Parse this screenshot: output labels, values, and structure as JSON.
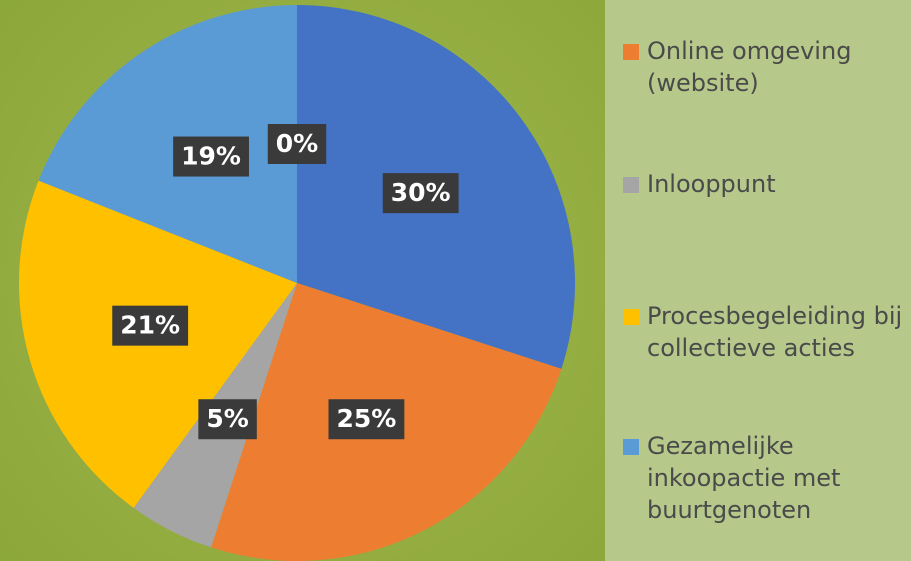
{
  "chart_data": {
    "type": "pie",
    "categories": [
      null,
      "Online omgeving (website)",
      "Inlooppunt",
      "Procesbegeleiding bij collectieve acties",
      "Gezamelijke inkoopactie met buurtgenoten",
      null
    ],
    "values": [
      30,
      25,
      5,
      21,
      19,
      0
    ],
    "value_labels": [
      "30%",
      "25%",
      "5%",
      "21%",
      "19%",
      "0%"
    ],
    "colors": [
      "#4472c4",
      "#ed7d31",
      "#a5a5a5",
      "#ffc000",
      "#5b9bd5",
      "#264478"
    ]
  }
}
